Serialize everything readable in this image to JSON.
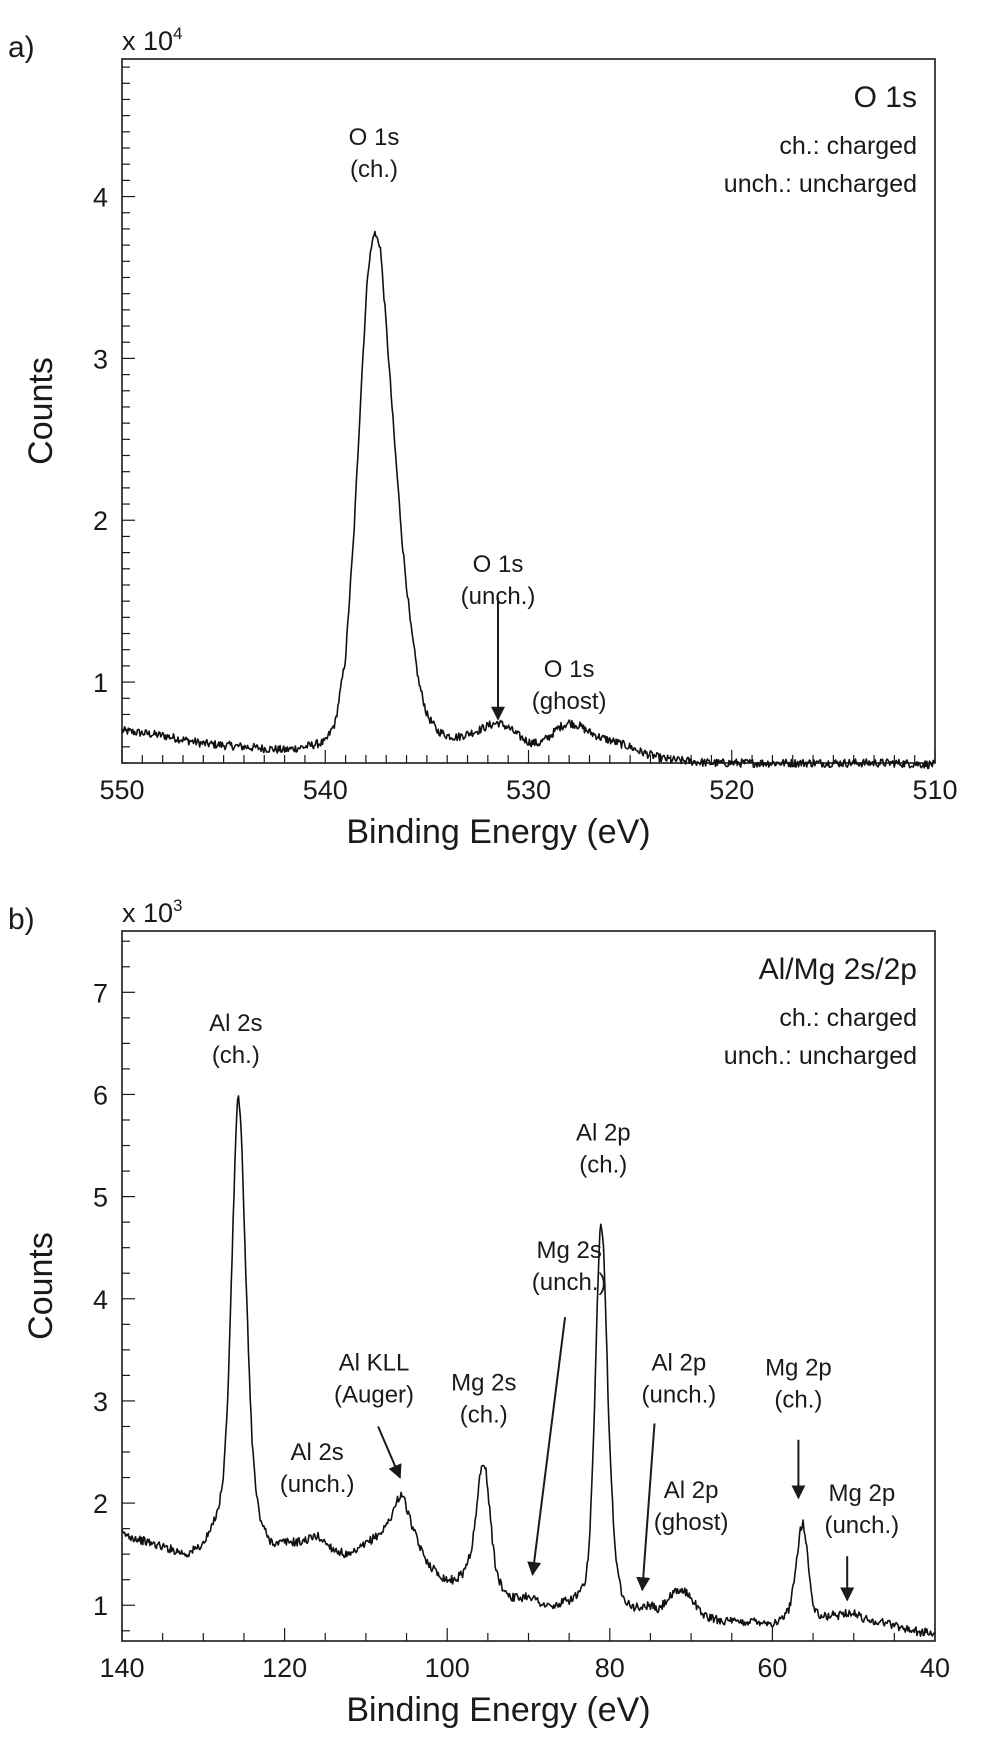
{
  "chart_data": [
    {
      "panel_label": "a)",
      "type": "line",
      "region_title": "O 1s",
      "legend_lines": [
        "ch.: charged",
        "unch.: uncharged"
      ],
      "multiplier": {
        "base": "x 10",
        "exponent": "4"
      },
      "xlabel": "Binding Energy (eV)",
      "ylabel": "Counts",
      "xlim": [
        550,
        510
      ],
      "ylim": [
        0.5,
        4.85
      ],
      "x_ticks": [
        550,
        540,
        530,
        520,
        510
      ],
      "y_ticks": [
        1,
        2,
        3,
        4
      ],
      "x_minor_step": 1,
      "y_minor_step": 0.1,
      "x_reversed": true,
      "series": [
        {
          "x": [
            550,
            548,
            546,
            544,
            542,
            541,
            540,
            539.5,
            539,
            538.6,
            538.2,
            537.9,
            537.6,
            537.3,
            537,
            536.6,
            536.2,
            535.8,
            535.4,
            535,
            534.5,
            534,
            533.5,
            533,
            532.5,
            532,
            531.5,
            531,
            530.5,
            530,
            529.5,
            529,
            528.5,
            528,
            527.5,
            527,
            526.5,
            526,
            525.5,
            525,
            524.5,
            524,
            523.5,
            523,
            522,
            521,
            520,
            518,
            516,
            514,
            512,
            510
          ],
          "y": [
            0.7,
            0.67,
            0.62,
            0.6,
            0.58,
            0.6,
            0.63,
            0.75,
            1.15,
            1.9,
            2.9,
            3.55,
            3.78,
            3.7,
            3.2,
            2.5,
            1.85,
            1.35,
            1.0,
            0.8,
            0.7,
            0.67,
            0.66,
            0.68,
            0.7,
            0.73,
            0.75,
            0.72,
            0.67,
            0.63,
            0.62,
            0.66,
            0.72,
            0.75,
            0.73,
            0.69,
            0.66,
            0.64,
            0.62,
            0.6,
            0.57,
            0.55,
            0.53,
            0.52,
            0.51,
            0.5,
            0.5,
            0.5,
            0.5,
            0.5,
            0.5,
            0.49
          ]
        }
      ],
      "annotations": [
        {
          "lines": [
            "O 1s",
            "(ch.)"
          ],
          "x": 537.6,
          "y": 4.32
        },
        {
          "lines": [
            "O 1s",
            "(unch.)"
          ],
          "x": 531.5,
          "y": 1.68,
          "arrow": {
            "from": [
              531.5,
              1.52
            ],
            "to": [
              531.5,
              0.77
            ]
          }
        },
        {
          "lines": [
            "O 1s",
            "(ghost)"
          ],
          "x": 528,
          "y": 1.03
        }
      ]
    },
    {
      "panel_label": "b)",
      "type": "line",
      "region_title": "Al/Mg 2s/2p",
      "legend_lines": [
        "ch.: charged",
        "unch.: uncharged"
      ],
      "multiplier": {
        "base": "x 10",
        "exponent": "3"
      },
      "xlabel": "Binding Energy (eV)",
      "ylabel": "Counts",
      "xlim": [
        140,
        40
      ],
      "ylim": [
        0.65,
        7.6
      ],
      "x_ticks": [
        140,
        120,
        100,
        80,
        60,
        40
      ],
      "y_ticks": [
        1,
        2,
        3,
        4,
        5,
        6,
        7
      ],
      "x_minor_step": 5,
      "y_minor_step": 0.25,
      "x_reversed": true,
      "series": [
        {
          "x": [
            140,
            137,
            134,
            132,
            130,
            129,
            128,
            127.5,
            127,
            126.5,
            126,
            125.7,
            125.3,
            125,
            124.5,
            124,
            123.5,
            123,
            122,
            121,
            120,
            118,
            116,
            114,
            112,
            110,
            108,
            107,
            106,
            105.5,
            105,
            104,
            103,
            102,
            101,
            100,
            99,
            98,
            97,
            96.5,
            96,
            95.6,
            95.2,
            94.8,
            94.4,
            94,
            93.5,
            93,
            92,
            91,
            90,
            89,
            88,
            87,
            86,
            85,
            84,
            83,
            82.5,
            82,
            81.6,
            81.2,
            80.8,
            80.5,
            80.2,
            79.8,
            79.4,
            79,
            78.5,
            78,
            77,
            76,
            75,
            74,
            73,
            72,
            71,
            70,
            69,
            68,
            66,
            64,
            62,
            60,
            59,
            58,
            57.5,
            57,
            56.6,
            56.2,
            55.8,
            55.4,
            55,
            54.5,
            54,
            53,
            52,
            51,
            50,
            49,
            48,
            46,
            44,
            42,
            40
          ],
          "y": [
            1.7,
            1.62,
            1.55,
            1.5,
            1.6,
            1.75,
            2.0,
            2.3,
            3.0,
            4.3,
            5.6,
            6.05,
            5.6,
            4.8,
            3.6,
            2.6,
            2.1,
            1.85,
            1.65,
            1.6,
            1.62,
            1.62,
            1.68,
            1.55,
            1.48,
            1.6,
            1.72,
            1.85,
            2.05,
            2.1,
            1.95,
            1.7,
            1.5,
            1.38,
            1.3,
            1.25,
            1.25,
            1.32,
            1.55,
            1.85,
            2.25,
            2.42,
            2.3,
            1.95,
            1.6,
            1.35,
            1.22,
            1.15,
            1.08,
            1.07,
            1.1,
            1.05,
            1.0,
            0.98,
            1.02,
            1.05,
            1.1,
            1.2,
            1.6,
            2.6,
            3.8,
            4.75,
            4.6,
            3.9,
            3.0,
            2.2,
            1.6,
            1.3,
            1.12,
            1.05,
            0.98,
            0.98,
            1.0,
            0.95,
            1.05,
            1.12,
            1.15,
            1.08,
            0.95,
            0.88,
            0.85,
            0.83,
            0.85,
            0.82,
            0.85,
            0.95,
            1.15,
            1.45,
            1.75,
            1.8,
            1.6,
            1.25,
            1.0,
            0.92,
            0.88,
            0.9,
            0.9,
            0.93,
            0.92,
            0.88,
            0.85,
            0.83,
            0.78,
            0.74,
            0.72
          ]
        }
      ],
      "annotations": [
        {
          "lines": [
            "Al 2s",
            "(ch.)"
          ],
          "x": 126,
          "y": 6.62
        },
        {
          "lines": [
            "Al 2s",
            "(unch.)"
          ],
          "x": 116,
          "y": 2.42
        },
        {
          "lines": [
            "Al KLL",
            "(Auger)"
          ],
          "x": 109,
          "y": 3.3,
          "arrow": {
            "from": [
              108.5,
              2.75
            ],
            "to": [
              105.8,
              2.25
            ]
          }
        },
        {
          "lines": [
            "Mg 2s",
            "(ch.)"
          ],
          "x": 95.5,
          "y": 3.1
        },
        {
          "lines": [
            "Mg 2s",
            "(unch.)"
          ],
          "x": 85,
          "y": 4.4,
          "arrow": {
            "from": [
              85.5,
              3.82
            ],
            "to": [
              89.5,
              1.3
            ]
          }
        },
        {
          "lines": [
            "Al 2p",
            "(ch.)"
          ],
          "x": 80.8,
          "y": 5.55
        },
        {
          "lines": [
            "Al 2p",
            "(unch.)"
          ],
          "x": 71.5,
          "y": 3.3,
          "arrow": {
            "from": [
              74.5,
              2.78
            ],
            "to": [
              76,
              1.15
            ]
          }
        },
        {
          "lines": [
            "Al 2p",
            "(ghost)"
          ],
          "x": 70,
          "y": 2.05
        },
        {
          "lines": [
            "Mg 2p",
            "(ch.)"
          ],
          "x": 56.8,
          "y": 3.25,
          "arrow": {
            "from": [
              56.8,
              2.62
            ],
            "to": [
              56.8,
              2.05
            ]
          }
        },
        {
          "lines": [
            "Mg 2p",
            "(unch.)"
          ],
          "x": 49,
          "y": 2.02,
          "arrow": {
            "from": [
              50.8,
              1.48
            ],
            "to": [
              50.8,
              1.05
            ]
          }
        }
      ]
    }
  ]
}
